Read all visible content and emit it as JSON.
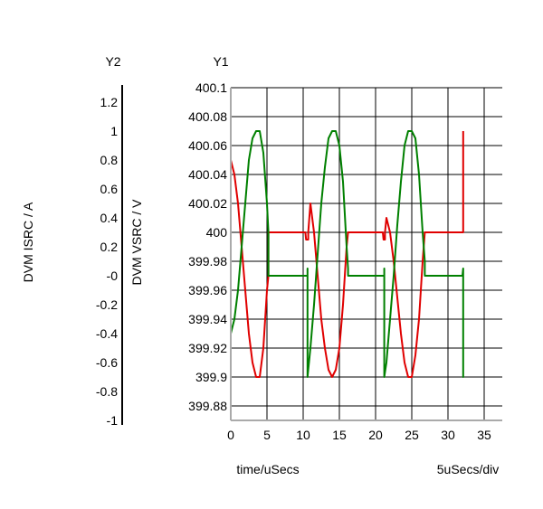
{
  "chart_data": {
    "type": "line",
    "axis_titles": {
      "y2": "Y2",
      "y1": "Y1"
    },
    "y2label": "DVM ISRC / A",
    "y1label": "DVM VSRC / V",
    "xlabel": "time/uSecs",
    "xscale_note": "5uSecs/div",
    "xlim": [
      0,
      37.5
    ],
    "y1lim": [
      399.87,
      400.1
    ],
    "y2lim": [
      -1.0,
      1.3
    ],
    "x_ticks": [
      "0",
      "5",
      "10",
      "15",
      "20",
      "25",
      "30",
      "35"
    ],
    "y1_ticks": [
      "400.1",
      "400.08",
      "400.06",
      "400.04",
      "400.02",
      "400",
      "399.98",
      "399.96",
      "399.94",
      "399.92",
      "399.9",
      "399.88"
    ],
    "y2_ticks": [
      "1.2",
      "1",
      "0.8",
      "0.6",
      "0.4",
      "0.2",
      "-0",
      "-0.2",
      "-0.4",
      "-0.6",
      "-0.8",
      "-1"
    ],
    "grid": true,
    "series": [
      {
        "axis": "y1",
        "color": "#e00000",
        "x": [
          0,
          0.5,
          1,
          1.5,
          2,
          2.5,
          3,
          3.5,
          4,
          4.5,
          5,
          5.2,
          5.2,
          8,
          10.3,
          10.4,
          10.7,
          10.7,
          11,
          11.5,
          12,
          12.5,
          13,
          13.5,
          14,
          14.5,
          15,
          15.5,
          16,
          16.2,
          16.2,
          19,
          21,
          21.1,
          21.3,
          21.3,
          21.5,
          22,
          22.5,
          23,
          23.5,
          24,
          24.5,
          25,
          25.5,
          26,
          26.5,
          26.8,
          26.8,
          30,
          32,
          32.1,
          32.1,
          32.1
        ],
        "y": [
          400.05,
          400.04,
          400.02,
          399.99,
          399.96,
          399.93,
          399.91,
          399.9,
          399.9,
          399.92,
          399.96,
          399.97,
          400.0,
          400.0,
          400.0,
          399.995,
          399.995,
          400.0,
          400.02,
          400.0,
          399.97,
          399.94,
          399.92,
          399.905,
          399.9,
          399.905,
          399.92,
          399.95,
          399.99,
          400.0,
          400.0,
          400.0,
          400.0,
          399.995,
          399.995,
          400.0,
          400.01,
          400.0,
          399.98,
          399.955,
          399.93,
          399.91,
          399.9,
          399.9,
          399.915,
          399.94,
          399.98,
          400.0,
          400.0,
          400.0,
          400.0,
          400.0,
          400.05,
          400.07
        ]
      },
      {
        "axis": "y1",
        "color": "#008000",
        "x": [
          0,
          0.5,
          1,
          1.5,
          2,
          2.5,
          3,
          3.5,
          4,
          4.5,
          5,
          5.2,
          5.2,
          8,
          10.6,
          10.6,
          10.6,
          11,
          11.5,
          12,
          12.5,
          13,
          13.5,
          14,
          14.5,
          15,
          15.5,
          16,
          16.2,
          16.2,
          19,
          21.2,
          21.2,
          21.2,
          21.5,
          22,
          22.5,
          23,
          23.5,
          24,
          24.5,
          25,
          25.5,
          26,
          26.5,
          26.8,
          26.8,
          30,
          32,
          32.1,
          32.1,
          32.1
        ],
        "y": [
          399.93,
          399.94,
          399.96,
          399.99,
          400.02,
          400.05,
          400.065,
          400.07,
          400.07,
          400.055,
          400.02,
          400.0,
          399.97,
          399.97,
          399.97,
          399.975,
          399.9,
          399.92,
          399.95,
          399.985,
          400.02,
          400.045,
          400.065,
          400.07,
          400.07,
          400.06,
          400.035,
          399.99,
          399.975,
          399.97,
          399.97,
          399.97,
          399.975,
          399.9,
          399.91,
          399.94,
          399.97,
          400.005,
          400.035,
          400.06,
          400.07,
          400.07,
          400.065,
          400.04,
          400.0,
          399.98,
          399.97,
          399.97,
          399.97,
          399.975,
          399.9,
          399.93
        ]
      }
    ]
  }
}
